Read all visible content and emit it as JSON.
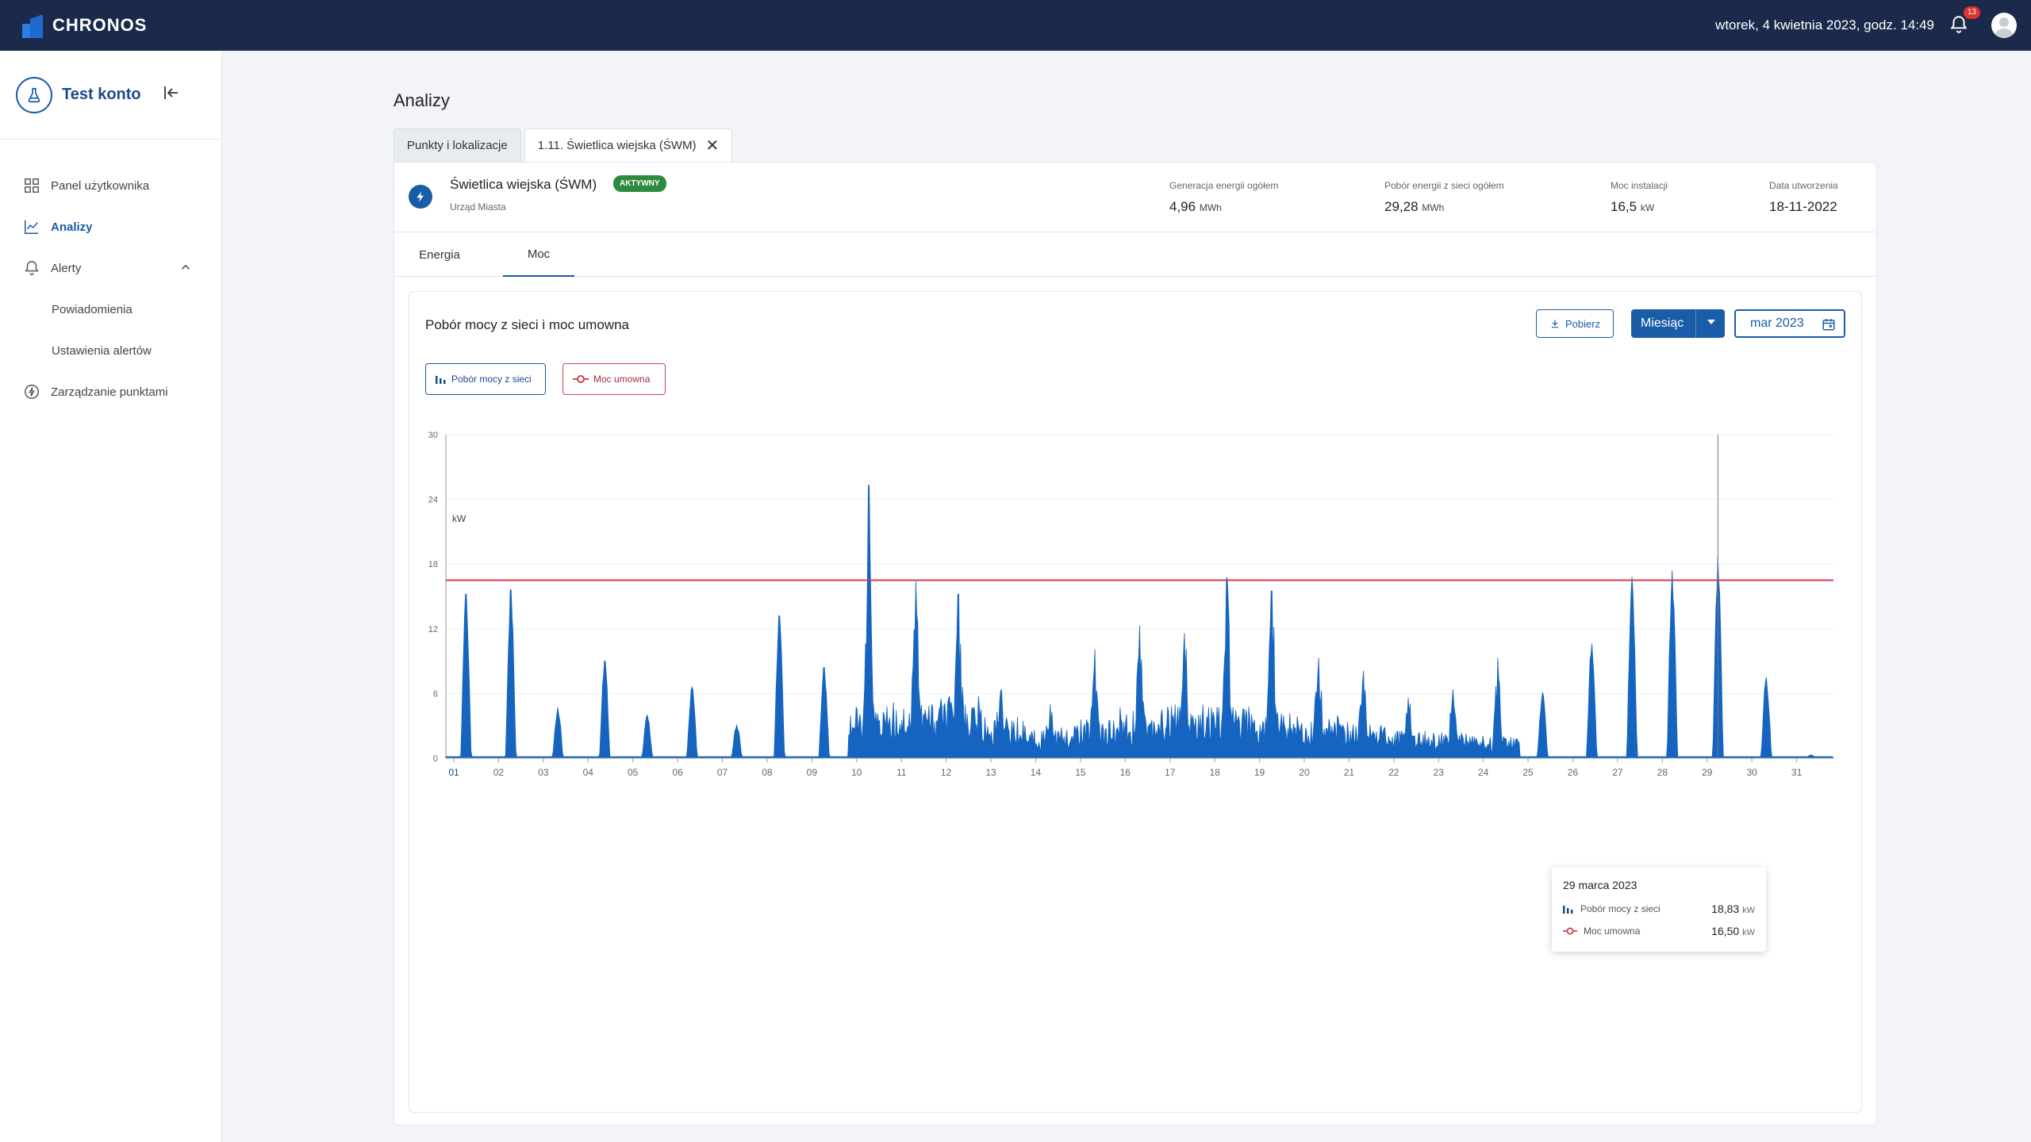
{
  "topbar": {
    "brand": "CHRONOS",
    "datetime": "wtorek, 4 kwietnia 2023, godz. 14:49",
    "notification_count": "13"
  },
  "sidebar": {
    "account_name": "Test konto",
    "items": [
      {
        "label": "Panel użytkownika",
        "icon": "dashboard-icon"
      },
      {
        "label": "Analizy",
        "icon": "chart-icon",
        "active": true
      },
      {
        "label": "Alerty",
        "icon": "bell-icon"
      },
      {
        "label": "Powiadomienia",
        "sub": true
      },
      {
        "label": "Ustawienia alertów",
        "sub": true
      },
      {
        "label": "Zarządzanie punktami",
        "icon": "bolt-icon"
      }
    ]
  },
  "page": {
    "title": "Analizy",
    "tabs": [
      {
        "label": "Punkty i lokalizacje"
      },
      {
        "label": "1.11. Świetlica wiejska (ŚWM)",
        "active": true
      }
    ]
  },
  "location": {
    "name": "Świetlica wiejska (ŚWM)",
    "status": "AKTYWNY",
    "owner": "Urząd Miasta",
    "stats": [
      {
        "label": "Generacja energii ogółem",
        "value": "4,96",
        "unit": "MWh"
      },
      {
        "label": "Pobór energii z sieci ogółem",
        "value": "29,28",
        "unit": "MWh"
      },
      {
        "label": "Moc instalacji",
        "value": "16,5",
        "unit": "kW"
      },
      {
        "label": "Data utworzenia",
        "value": "18-11-2022",
        "unit": ""
      }
    ],
    "subtabs": [
      "Energia",
      "Moc"
    ]
  },
  "panel": {
    "title": "Pobór mocy z sieci i moc umowna",
    "download_label": "Pobierz",
    "period_label": "Miesiąc",
    "date_value": "mar 2023",
    "legend": [
      "Pobór mocy z sieci",
      "Moc umowna"
    ]
  },
  "tooltip": {
    "date": "29 marca 2023",
    "rows": [
      {
        "name": "Pobór mocy z sieci",
        "value": "18,83",
        "unit": "kW"
      },
      {
        "name": "Moc umowna",
        "value": "16,50",
        "unit": "kW"
      }
    ]
  },
  "chart_data": {
    "type": "area",
    "ylabel": "kW",
    "ylim": [
      0,
      30
    ],
    "y_ticks": [
      "0",
      "6",
      "12",
      "18",
      "24",
      "30"
    ],
    "x_ticks": [
      "01",
      "02",
      "03",
      "04",
      "05",
      "06",
      "07",
      "08",
      "09",
      "10",
      "11",
      "12",
      "13",
      "14",
      "15",
      "16",
      "17",
      "18",
      "19",
      "20",
      "21",
      "22",
      "23",
      "24",
      "25",
      "26",
      "27",
      "28",
      "29",
      "30",
      "31"
    ],
    "series": [
      {
        "name": "Pobór mocy z sieci",
        "color": "#1565c0",
        "daily_peak_kw": [
          15.2,
          15.6,
          4.7,
          9.0,
          4.0,
          6.6,
          3.1,
          13.2,
          8.4,
          25.3,
          16.4,
          15.2,
          6.3,
          5.0,
          10.1,
          12.3,
          11.6,
          16.7,
          15.5,
          9.3,
          8.1,
          5.6,
          6.4,
          9.3,
          6.1,
          10.6,
          16.8,
          17.4,
          18.8,
          7.5,
          0.3
        ],
        "peak_time_fraction": [
          0.45,
          0.45,
          0.5,
          0.55,
          0.5,
          0.5,
          0.5,
          0.45,
          0.45,
          0.45,
          0.5,
          0.45,
          0.4,
          0.5,
          0.5,
          0.5,
          0.5,
          0.45,
          0.45,
          0.5,
          0.5,
          0.5,
          0.5,
          0.5,
          0.5,
          0.6,
          0.5,
          0.4,
          0.42,
          0.5,
          0.5
        ],
        "daily_base_kw": [
          0,
          0,
          0,
          0,
          0,
          0,
          0,
          0,
          0,
          4.0,
          4.5,
          4.8,
          3.2,
          2.4,
          3.0,
          4.0,
          4.2,
          4.0,
          3.8,
          3.3,
          2.8,
          2.2,
          2.0,
          1.8,
          0,
          0,
          0,
          0,
          0,
          0,
          0
        ]
      },
      {
        "name": "Moc umowna",
        "color": "#d04150",
        "value_kw": 16.5
      }
    ],
    "hover_day": 29
  }
}
